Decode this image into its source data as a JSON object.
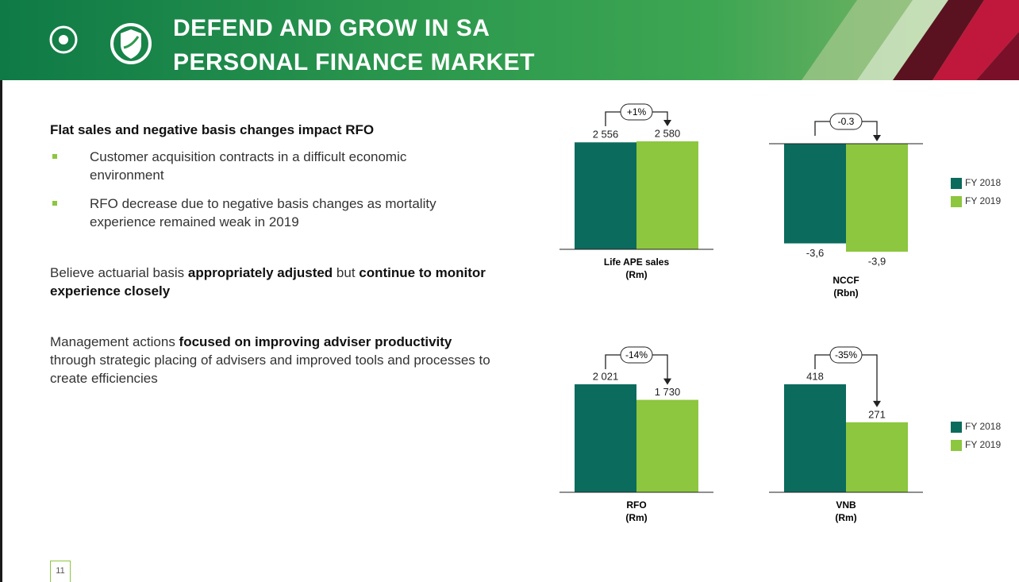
{
  "header": {
    "title_lines": [
      "DEFEND AND GROW IN SA",
      "PERSONAL FINANCE MARKET"
    ]
  },
  "body": {
    "heading": "Flat sales and negative basis changes impact RFO",
    "bullets": [
      "Customer acquisition contracts in a difficult economic environment",
      "RFO decrease due to negative basis changes as mortality experience remained weak in 2019"
    ],
    "paragraphs": [
      [
        {
          "text": "Believe actuarial basis ",
          "bold": false
        },
        {
          "text": "appropriately adjusted",
          "bold": true
        },
        {
          "text": " but ",
          "bold": false
        },
        {
          "text": "continue to monitor experience closely",
          "bold": true
        }
      ],
      [
        {
          "text": "Management actions ",
          "bold": false
        },
        {
          "text": "focused on improving adviser productivity",
          "bold": true
        },
        {
          "text": " through strategic placing of advisers and improved tools and processes to create efficiencies",
          "bold": false
        }
      ]
    ]
  },
  "page_number": 11,
  "chart_data": [
    {
      "type": "bar",
      "xlabel": "Life APE sales",
      "unit": "(Rm)",
      "change": "+1%",
      "legend": false,
      "series": [
        {
          "name": "FY 2018",
          "color": "#0b6b5d",
          "values": [
            2556
          ],
          "value_labels": [
            "2 556"
          ]
        },
        {
          "name": "FY 2019",
          "color": "#8dc63f",
          "values": [
            2580
          ],
          "value_labels": [
            "2 580"
          ]
        }
      ]
    },
    {
      "type": "bar",
      "xlabel": "NCCF",
      "unit": "(Rbn)",
      "change": "-0.3",
      "legend": true,
      "series": [
        {
          "name": "FY 2018",
          "color": "#0b6b5d",
          "values": [
            -3.6
          ],
          "value_labels": [
            "-3,6"
          ]
        },
        {
          "name": "FY 2019",
          "color": "#8dc63f",
          "values": [
            -3.9
          ],
          "value_labels": [
            "-3,9"
          ]
        }
      ]
    },
    {
      "type": "bar",
      "xlabel": "RFO",
      "unit": "(Rm)",
      "change": "-14%",
      "legend": false,
      "series": [
        {
          "name": "FY 2018",
          "color": "#0b6b5d",
          "values": [
            2021
          ],
          "value_labels": [
            "2 021"
          ]
        },
        {
          "name": "FY 2019",
          "color": "#8dc63f",
          "values": [
            1730
          ],
          "value_labels": [
            "1 730"
          ]
        }
      ]
    },
    {
      "type": "bar",
      "xlabel": "VNB",
      "unit": "(Rm)",
      "change": "-35%",
      "legend": true,
      "series": [
        {
          "name": "FY 2018",
          "color": "#0b6b5d",
          "values": [
            418
          ]
        },
        {
          "name": "FY 2019",
          "color": "#8dc63f",
          "values": [
            271
          ]
        }
      ]
    }
  ]
}
